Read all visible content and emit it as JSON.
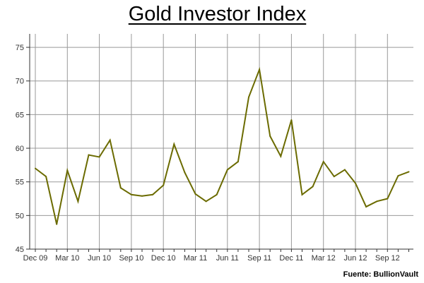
{
  "chart_data": {
    "type": "line",
    "title": "Gold Investor Index",
    "xlabel": "",
    "ylabel": "",
    "ylim": [
      45,
      77
    ],
    "yticks": [
      45,
      50,
      55,
      60,
      65,
      70,
      75
    ],
    "x_tick_labels": [
      "Dec 09",
      "Mar 10",
      "Jun 10",
      "Sep 10",
      "Dec 10",
      "Mar 11",
      "Jun 11",
      "Sep 11",
      "Dec 11",
      "Mar 12",
      "Jun 12",
      "Sep 12"
    ],
    "x_months": [
      "Dec 09",
      "Jan 10",
      "Feb 10",
      "Mar 10",
      "Apr 10",
      "May 10",
      "Jun 10",
      "Jul 10",
      "Aug 10",
      "Sep 10",
      "Oct 10",
      "Nov 10",
      "Dec 10",
      "Jan 11",
      "Feb 11",
      "Mar 11",
      "Apr 11",
      "May 11",
      "Jun 11",
      "Jul 11",
      "Aug 11",
      "Sep 11",
      "Oct 11",
      "Nov 11",
      "Dec 11",
      "Jan 12",
      "Feb 12",
      "Mar 12",
      "Apr 12",
      "May 12",
      "Jun 12",
      "Jul 12",
      "Aug 12",
      "Sep 12",
      "Oct 12",
      "Nov 12"
    ],
    "values": [
      57.0,
      55.8,
      48.7,
      56.7,
      52.1,
      59.0,
      58.7,
      61.2,
      54.1,
      53.1,
      52.9,
      53.1,
      54.5,
      60.6,
      56.4,
      53.2,
      52.1,
      53.1,
      56.8,
      58.0,
      67.6,
      71.7,
      61.8,
      58.8,
      64.2,
      53.1,
      54.3,
      58.0,
      55.8,
      56.8,
      54.8,
      51.3,
      52.1,
      52.5,
      55.9,
      56.5
    ],
    "grid": true,
    "line_color": "#6b6b00",
    "grid_color": "#999999"
  },
  "source": "Fuente: BullionVault"
}
